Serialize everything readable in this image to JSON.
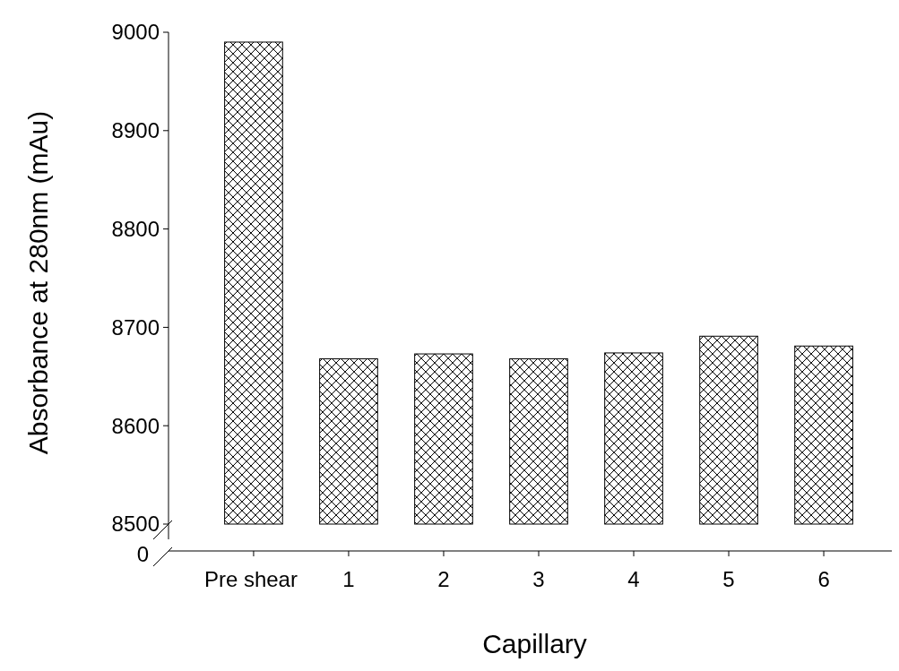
{
  "chart_data": {
    "type": "bar",
    "xlabel": "Capillary",
    "ylabel": "Absorbance at 280nm (mAu)",
    "categories": [
      "Pre shear",
      "1",
      "2",
      "3",
      "4",
      "5",
      "6"
    ],
    "values": [
      8990,
      8668,
      8673,
      8668,
      8674,
      8691,
      8681
    ],
    "color": "#000000",
    "ylim": [
      8500,
      9000
    ],
    "yticks": [
      8500,
      8600,
      8700,
      8800,
      8900,
      9000
    ],
    "annotations": [
      "0"
    ],
    "grid": false
  }
}
